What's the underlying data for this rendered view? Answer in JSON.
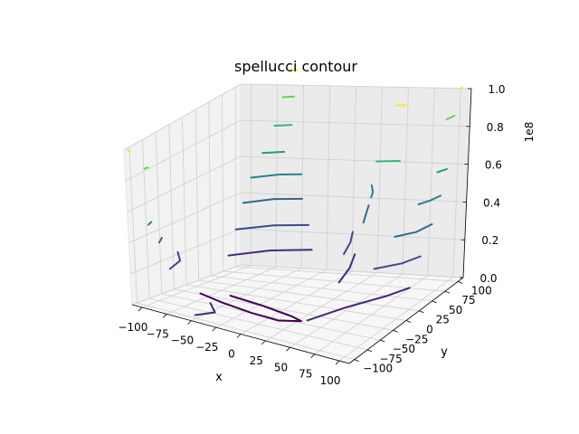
{
  "chart_data": {
    "type": "contour3d",
    "title": "spellucci contour",
    "xlabel": "x",
    "ylabel": "y",
    "zlabel": "",
    "z_offset_label": "1e8",
    "xlim": [
      -110,
      110
    ],
    "ylim": [
      -110,
      110
    ],
    "zlim": [
      0,
      1.0
    ],
    "x_ticks": [
      "−100",
      "−75",
      "−50",
      "−25",
      "0",
      "25",
      "50",
      "75",
      "100"
    ],
    "y_ticks": [
      "−100",
      "−75",
      "−50",
      "−25",
      "0",
      "25",
      "50",
      "75",
      "100"
    ],
    "z_ticks": [
      "0.0",
      "0.2",
      "0.4",
      "0.6",
      "0.8",
      "1.0"
    ],
    "z_units": "1e8",
    "grid": true,
    "colormap": "viridis",
    "levels": [
      {
        "level": 0.0,
        "color": "#440154"
      },
      {
        "level": 0.12,
        "color": "#482878"
      },
      {
        "level": 0.25,
        "color": "#3e4989"
      },
      {
        "level": 0.38,
        "color": "#31688e"
      },
      {
        "level": 0.5,
        "color": "#26828e"
      },
      {
        "level": 0.62,
        "color": "#1f9e89"
      },
      {
        "level": 0.75,
        "color": "#35b779"
      },
      {
        "level": 0.88,
        "color": "#6ece58"
      },
      {
        "level": 1.0,
        "color": "#fde725"
      }
    ],
    "contour_lines": [
      {
        "level": 0.0,
        "points": [
          [
            -60,
            -12,
            0.0
          ],
          [
            -20,
            -25,
            0.0
          ],
          [
            15,
            -38,
            0.0
          ],
          [
            28,
            -45,
            0.0
          ],
          [
            10,
            -55,
            0.0
          ],
          [
            -20,
            -50,
            0.0
          ],
          [
            -55,
            -38,
            0.0
          ],
          [
            -85,
            -22,
            0.0
          ]
        ]
      },
      {
        "level": 0.12,
        "points": [
          [
            10,
            95,
            0.12
          ],
          [
            25,
            55,
            0.12
          ],
          [
            35,
            15,
            0.12
          ]
        ]
      },
      {
        "level": 0.12,
        "points": [
          [
            -95,
            55,
            0.12
          ],
          [
            -70,
            88,
            0.12
          ],
          [
            -35,
            100,
            0.12
          ]
        ]
      },
      {
        "level": 0.12,
        "points": [
          [
            100,
            25,
            0.12
          ],
          [
            90,
            0,
            0.12
          ],
          [
            70,
            -40,
            0.12
          ],
          [
            55,
            -85,
            0.12
          ]
        ]
      },
      {
        "level": 0.12,
        "points": [
          [
            -35,
            -100,
            0.12
          ],
          [
            -20,
            -120,
            0.12
          ],
          [
            -30,
            -140,
            0.12
          ]
        ]
      },
      {
        "level": 0.25,
        "points": [
          [
            10,
            90,
            0.25
          ],
          [
            22,
            62,
            0.25
          ],
          [
            32,
            30,
            0.25
          ]
        ]
      },
      {
        "level": 0.25,
        "points": [
          [
            -95,
            70,
            0.25
          ],
          [
            -70,
            95,
            0.25
          ],
          [
            -40,
            103,
            0.25
          ]
        ]
      },
      {
        "level": 0.25,
        "points": [
          [
            100,
            45,
            0.25
          ],
          [
            92,
            25,
            0.25
          ],
          [
            75,
            5,
            0.25
          ]
        ]
      },
      {
        "level": 0.25,
        "points": [
          [
            -100,
            -35,
            0.25
          ],
          [
            -85,
            -60,
            0.25
          ],
          [
            -80,
            -90,
            0.25
          ]
        ]
      },
      {
        "level": 0.38,
        "points": [
          [
            20,
            100,
            0.38
          ],
          [
            30,
            75,
            0.38
          ],
          [
            38,
            55,
            0.38
          ]
        ]
      },
      {
        "level": 0.38,
        "points": [
          [
            -95,
            85,
            0.38
          ],
          [
            -75,
            105,
            0.38
          ],
          [
            -50,
            110,
            0.38
          ]
        ]
      },
      {
        "level": 0.38,
        "points": [
          [
            100,
            65,
            0.38
          ],
          [
            95,
            45,
            0.38
          ],
          [
            82,
            30,
            0.38
          ]
        ]
      },
      {
        "level": 0.38,
        "points": [
          [
            -100,
            -65,
            0.38
          ],
          [
            -95,
            -80,
            0.38
          ]
        ]
      },
      {
        "level": 0.5,
        "points": [
          [
            25,
            95,
            0.5
          ],
          [
            35,
            78,
            0.5
          ],
          [
            40,
            65,
            0.5
          ]
        ]
      },
      {
        "level": 0.5,
        "points": [
          [
            -95,
            100,
            0.5
          ],
          [
            -75,
            115,
            0.5
          ],
          [
            -55,
            118,
            0.5
          ]
        ]
      },
      {
        "level": 0.5,
        "points": [
          [
            100,
            80,
            0.5
          ],
          [
            96,
            68,
            0.5
          ],
          [
            90,
            58,
            0.5
          ]
        ]
      },
      {
        "level": 0.5,
        "points": [
          [
            -102,
            -80,
            0.5
          ],
          [
            -100,
            -90,
            0.5
          ]
        ]
      },
      {
        "level": 0.62,
        "points": [
          [
            100,
            90,
            0.62
          ],
          [
            95,
            82,
            0.62
          ]
        ]
      },
      {
        "level": 0.62,
        "points": [
          [
            -90,
            112,
            0.62
          ],
          [
            -72,
            118,
            0.62
          ]
        ]
      },
      {
        "level": 0.75,
        "points": [
          [
            -85,
            125,
            0.75
          ],
          [
            -70,
            128,
            0.75
          ]
        ]
      },
      {
        "level": 0.75,
        "points": [
          [
            55,
            45,
            0.75
          ],
          [
            75,
            50,
            0.75
          ]
        ]
      },
      {
        "level": 0.88,
        "points": [
          [
            100,
            100,
            0.88
          ],
          [
            97,
            92,
            0.88
          ]
        ]
      },
      {
        "level": 0.88,
        "points": [
          [
            -95,
            -95,
            0.88
          ],
          [
            -96,
            -100,
            0.88
          ]
        ]
      },
      {
        "level": 0.88,
        "points": [
          [
            -85,
            140,
            0.88
          ],
          [
            -75,
            142,
            0.88
          ]
        ]
      },
      {
        "level": 1.0,
        "points": [
          [
            -85,
            155,
            1.0
          ],
          [
            -80,
            156,
            1.0
          ]
        ]
      },
      {
        "level": 1.0,
        "points": [
          [
            60,
            70,
            1.0
          ],
          [
            68,
            72,
            1.0
          ]
        ]
      },
      {
        "level": 1.0,
        "points": [
          [
            100,
            112,
            1.0
          ],
          [
            99,
            110,
            1.0
          ]
        ]
      },
      {
        "level": 1.0,
        "points": [
          [
            -105,
            -108,
            1.0
          ],
          [
            -106,
            -110,
            1.0
          ]
        ]
      }
    ]
  }
}
